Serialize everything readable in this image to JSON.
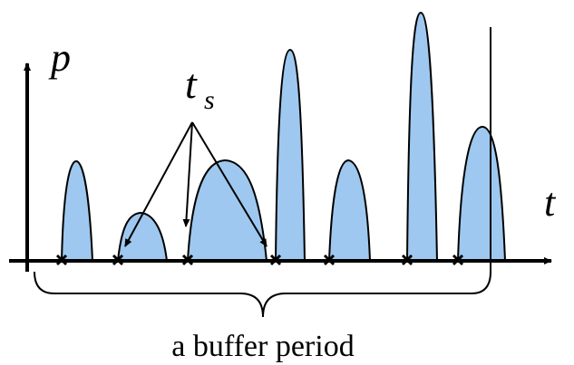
{
  "labels": {
    "y_axis": "p",
    "x_axis": "t",
    "start_time": "t",
    "start_time_subscript": "s",
    "bracket": "a buffer period"
  },
  "colors": {
    "pulse_fill": "#9ec8ef",
    "stroke": "#000000"
  }
}
